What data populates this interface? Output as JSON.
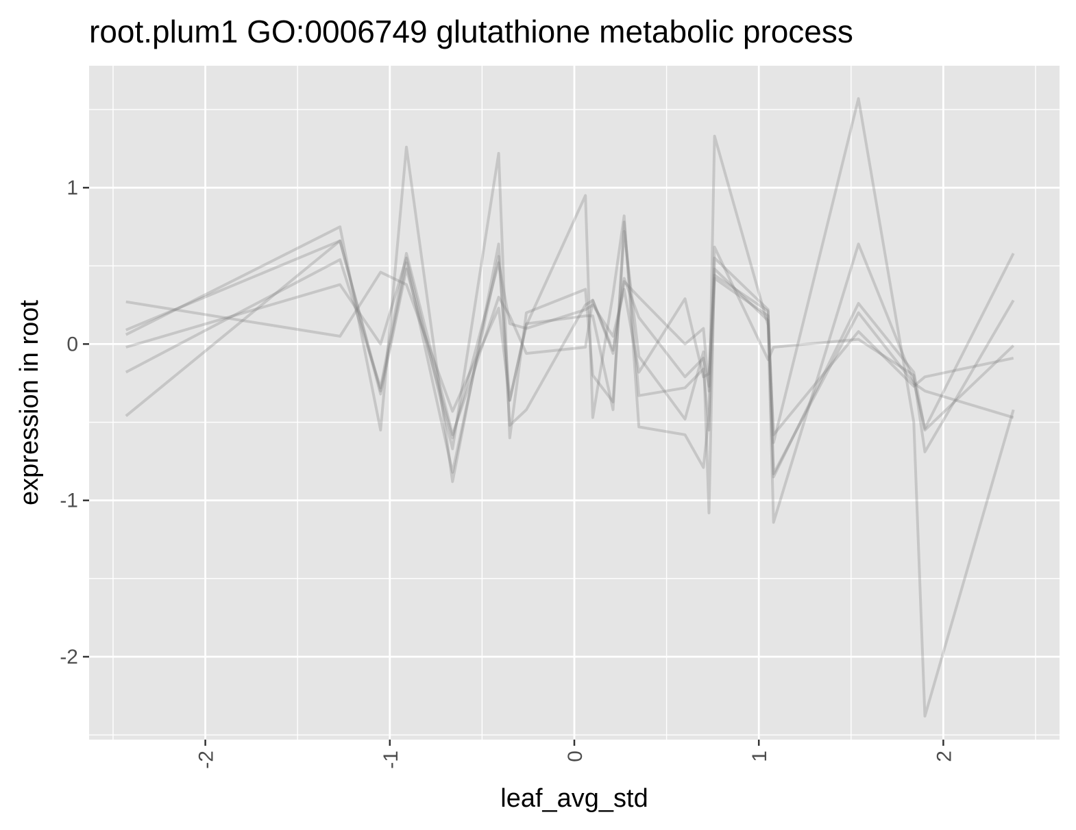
{
  "chart_data": {
    "type": "line",
    "title": "root.plum1 GO:0006749 glutathione metabolic process",
    "xlabel": "leaf_avg_std",
    "ylabel": "expression in root",
    "xlim": [
      -2.63,
      2.63
    ],
    "ylim": [
      -2.53,
      1.78
    ],
    "x_ticks": [
      -2,
      -1,
      0,
      1,
      2
    ],
    "x_tick_labels": [
      "-2",
      "-1",
      "0",
      "1",
      "2"
    ],
    "y_ticks": [
      -2,
      -1,
      0,
      1
    ],
    "y_tick_labels": [
      "-2",
      "-1",
      "0",
      "1"
    ],
    "grid": true,
    "panel_background": "#e5e5e5",
    "grid_color": "#ffffff",
    "line_color": "#7f7f7f",
    "line_alpha": 0.3,
    "x": [
      -2.43,
      -1.27,
      -1.05,
      -0.91,
      -0.66,
      -0.41,
      -0.35,
      -0.26,
      0.06,
      0.1,
      0.21,
      0.27,
      0.35,
      0.6,
      0.7,
      0.73,
      0.76,
      1.05,
      1.08,
      1.54,
      1.84,
      1.9,
      2.38
    ],
    "series": [
      {
        "values": [
          0.27,
          0.05,
          0.46,
          0.38,
          -0.43,
          0.23,
          -0.36,
          0.13,
          0.18,
          0.18,
          -0.42,
          0.78,
          -0.33,
          -0.28,
          -0.16,
          -0.55,
          0.42,
          0.18,
          -0.83,
          0.2,
          -0.25,
          -0.3,
          -0.47
        ]
      },
      {
        "values": [
          0.09,
          0.66,
          -0.3,
          0.52,
          -0.82,
          0.56,
          -0.36,
          0.12,
          0.95,
          -0.47,
          0.32,
          0.82,
          -0.53,
          -0.58,
          -0.79,
          -0.45,
          1.33,
          0.12,
          -1.14,
          0.64,
          -0.24,
          -0.54,
          0.58
        ]
      },
      {
        "values": [
          -0.02,
          0.38,
          0.0,
          0.55,
          -0.67,
          1.22,
          -0.6,
          0.2,
          0.35,
          -0.2,
          -0.37,
          0.72,
          -0.08,
          -0.48,
          -0.05,
          -1.08,
          0.55,
          0.22,
          -0.63,
          1.57,
          -0.5,
          -2.38,
          -0.42
        ]
      },
      {
        "values": [
          0.06,
          0.75,
          -0.55,
          1.26,
          -0.88,
          0.64,
          -0.52,
          -0.42,
          0.25,
          0.28,
          -0.04,
          0.42,
          0.17,
          -0.21,
          -0.09,
          -0.27,
          0.62,
          -0.1,
          -0.02,
          0.03,
          -0.2,
          -0.69,
          0.28
        ]
      },
      {
        "values": [
          -0.18,
          0.54,
          -0.28,
          0.58,
          -0.58,
          0.3,
          0.18,
          -0.06,
          -0.02,
          0.28,
          -0.06,
          0.4,
          0.3,
          0.0,
          0.1,
          -0.3,
          0.48,
          0.15,
          -0.58,
          0.08,
          -0.27,
          -0.21,
          -0.09
        ]
      },
      {
        "values": [
          -0.46,
          0.66,
          -0.32,
          0.48,
          -0.6,
          0.52,
          0.13,
          0.1,
          0.22,
          0.25,
          0.05,
          0.35,
          -0.18,
          0.29,
          -0.21,
          -0.19,
          0.44,
          0.21,
          -0.85,
          0.26,
          -0.18,
          -0.55,
          -0.01
        ]
      }
    ]
  }
}
